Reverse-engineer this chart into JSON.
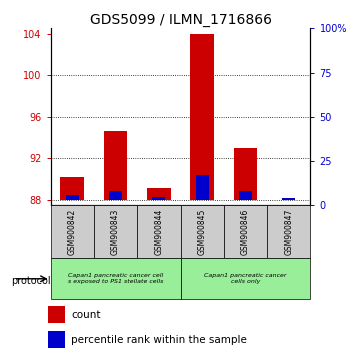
{
  "title": "GDS5099 / ILMN_1716866",
  "samples": [
    "GSM900842",
    "GSM900843",
    "GSM900844",
    "GSM900845",
    "GSM900846",
    "GSM900847"
  ],
  "count_values": [
    90.2,
    94.6,
    89.2,
    104.0,
    93.0,
    88.05
  ],
  "percentile_values": [
    3,
    5,
    2,
    14,
    5,
    1
  ],
  "baseline": 88.0,
  "ylim_left": [
    87.5,
    104.5
  ],
  "ylim_right": [
    0,
    100
  ],
  "yticks_left": [
    88,
    92,
    96,
    100,
    104
  ],
  "yticks_right": [
    0,
    25,
    50,
    75,
    100
  ],
  "bar_width": 0.55,
  "red_color": "#cc0000",
  "blue_color": "#0000cc",
  "group1_label": "Capan1 pancreatic cancer cell\ns exposed to PS1 stellate cells",
  "group2_label": "Capan1 pancreatic cancer\ncells only",
  "group1_color": "#99ee99",
  "group2_color": "#99ee99",
  "sample_box_color": "#cccccc",
  "protocol_label": "protocol",
  "legend_count": "count",
  "legend_percentile": "percentile rank within the sample",
  "tick_label_fontsize": 7,
  "title_fontsize": 10
}
